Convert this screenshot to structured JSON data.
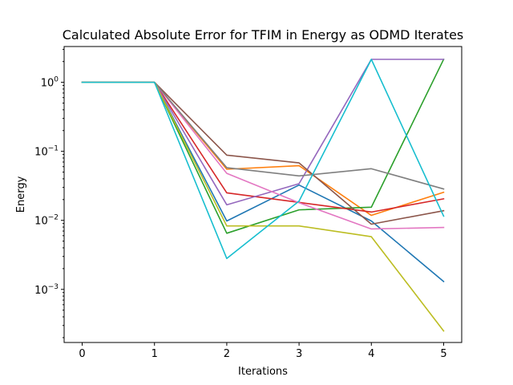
{
  "chart_data": {
    "type": "line",
    "title": "Calculated Absolute Error for TFIM in Energy as ODMD Iterates",
    "xlabel": "Iterations",
    "ylabel": "Energy",
    "x": [
      0,
      1,
      2,
      3,
      4,
      5
    ],
    "xlim": [
      -0.25,
      5.25
    ],
    "ylim": [
      0.00017,
      3.3
    ],
    "yscale": "log",
    "grid": false,
    "x_ticks": [
      {
        "value": 0,
        "label": "0"
      },
      {
        "value": 1,
        "label": "1"
      },
      {
        "value": 2,
        "label": "2"
      },
      {
        "value": 3,
        "label": "3"
      },
      {
        "value": 4,
        "label": "4"
      },
      {
        "value": 5,
        "label": "5"
      }
    ],
    "y_ticks": [
      {
        "value": 0.001,
        "base": "10",
        "exp": "−3"
      },
      {
        "value": 0.01,
        "base": "10",
        "exp": "−2"
      },
      {
        "value": 0.1,
        "base": "10",
        "exp": "−1"
      },
      {
        "value": 1,
        "base": "10",
        "exp": "0"
      }
    ],
    "series": [
      {
        "color": "#1f77b4",
        "values": [
          1,
          1,
          0.0098,
          0.0325,
          0.0098,
          0.0013
        ]
      },
      {
        "color": "#ff7f0e",
        "values": [
          1,
          1,
          0.055,
          0.062,
          0.0118,
          0.0255
        ]
      },
      {
        "color": "#2ca02c",
        "values": [
          1,
          1,
          0.0065,
          0.0142,
          0.0155,
          2.15
        ]
      },
      {
        "color": "#d62728",
        "values": [
          1,
          1,
          0.025,
          0.0182,
          0.0132,
          0.0205
        ]
      },
      {
        "color": "#9467bd",
        "values": [
          1,
          1,
          0.0168,
          0.034,
          2.15,
          2.15
        ]
      },
      {
        "color": "#8c564b",
        "values": [
          1,
          1,
          0.088,
          0.068,
          0.0088,
          0.0138
        ]
      },
      {
        "color": "#e377c2",
        "values": [
          1,
          1,
          0.048,
          0.018,
          0.0075,
          0.0079
        ]
      },
      {
        "color": "#7f7f7f",
        "values": [
          1,
          1,
          0.058,
          0.044,
          0.056,
          0.0285
        ]
      },
      {
        "color": "#bcbd22",
        "values": [
          1,
          1,
          0.0083,
          0.0083,
          0.0058,
          0.00025
        ]
      },
      {
        "color": "#17becf",
        "values": [
          1,
          1,
          0.0028,
          0.019,
          2.15,
          0.0115
        ]
      }
    ]
  }
}
